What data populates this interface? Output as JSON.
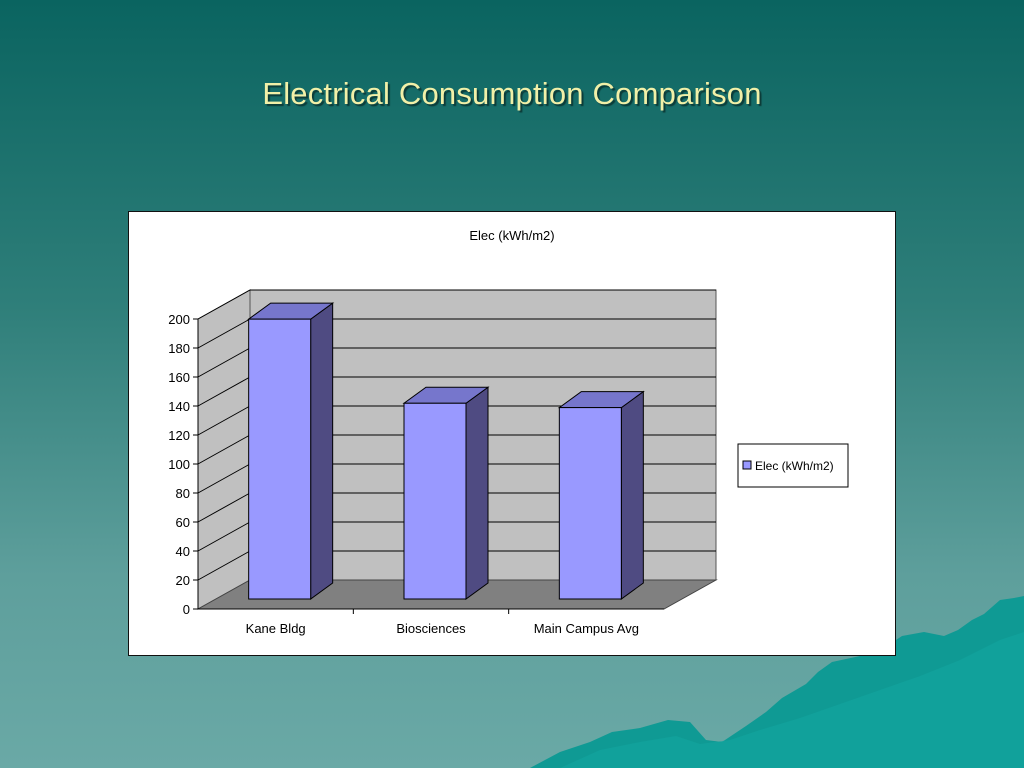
{
  "slide": {
    "title": "Electrical Consumption  Comparison"
  },
  "chart_data": {
    "type": "bar",
    "title": "Elec (kWh/m2)",
    "categories": [
      "Kane Bldg",
      "Biosciences",
      "Main Campus Avg"
    ],
    "series": [
      {
        "name": "Elec (kWh/m2)",
        "values": [
          193,
          135,
          132
        ]
      }
    ],
    "ylim": [
      0,
      200
    ],
    "yticks": [
      0,
      20,
      40,
      60,
      80,
      100,
      120,
      140,
      160,
      180,
      200
    ],
    "xlabel": "",
    "ylabel": "",
    "grid": true,
    "legend": "right",
    "colors": {
      "bar_front": "#9999ff",
      "bar_side": "#4f4b82",
      "bar_top": "#7676cc",
      "wall": "#c0c0c0",
      "floor": "#808080"
    }
  }
}
